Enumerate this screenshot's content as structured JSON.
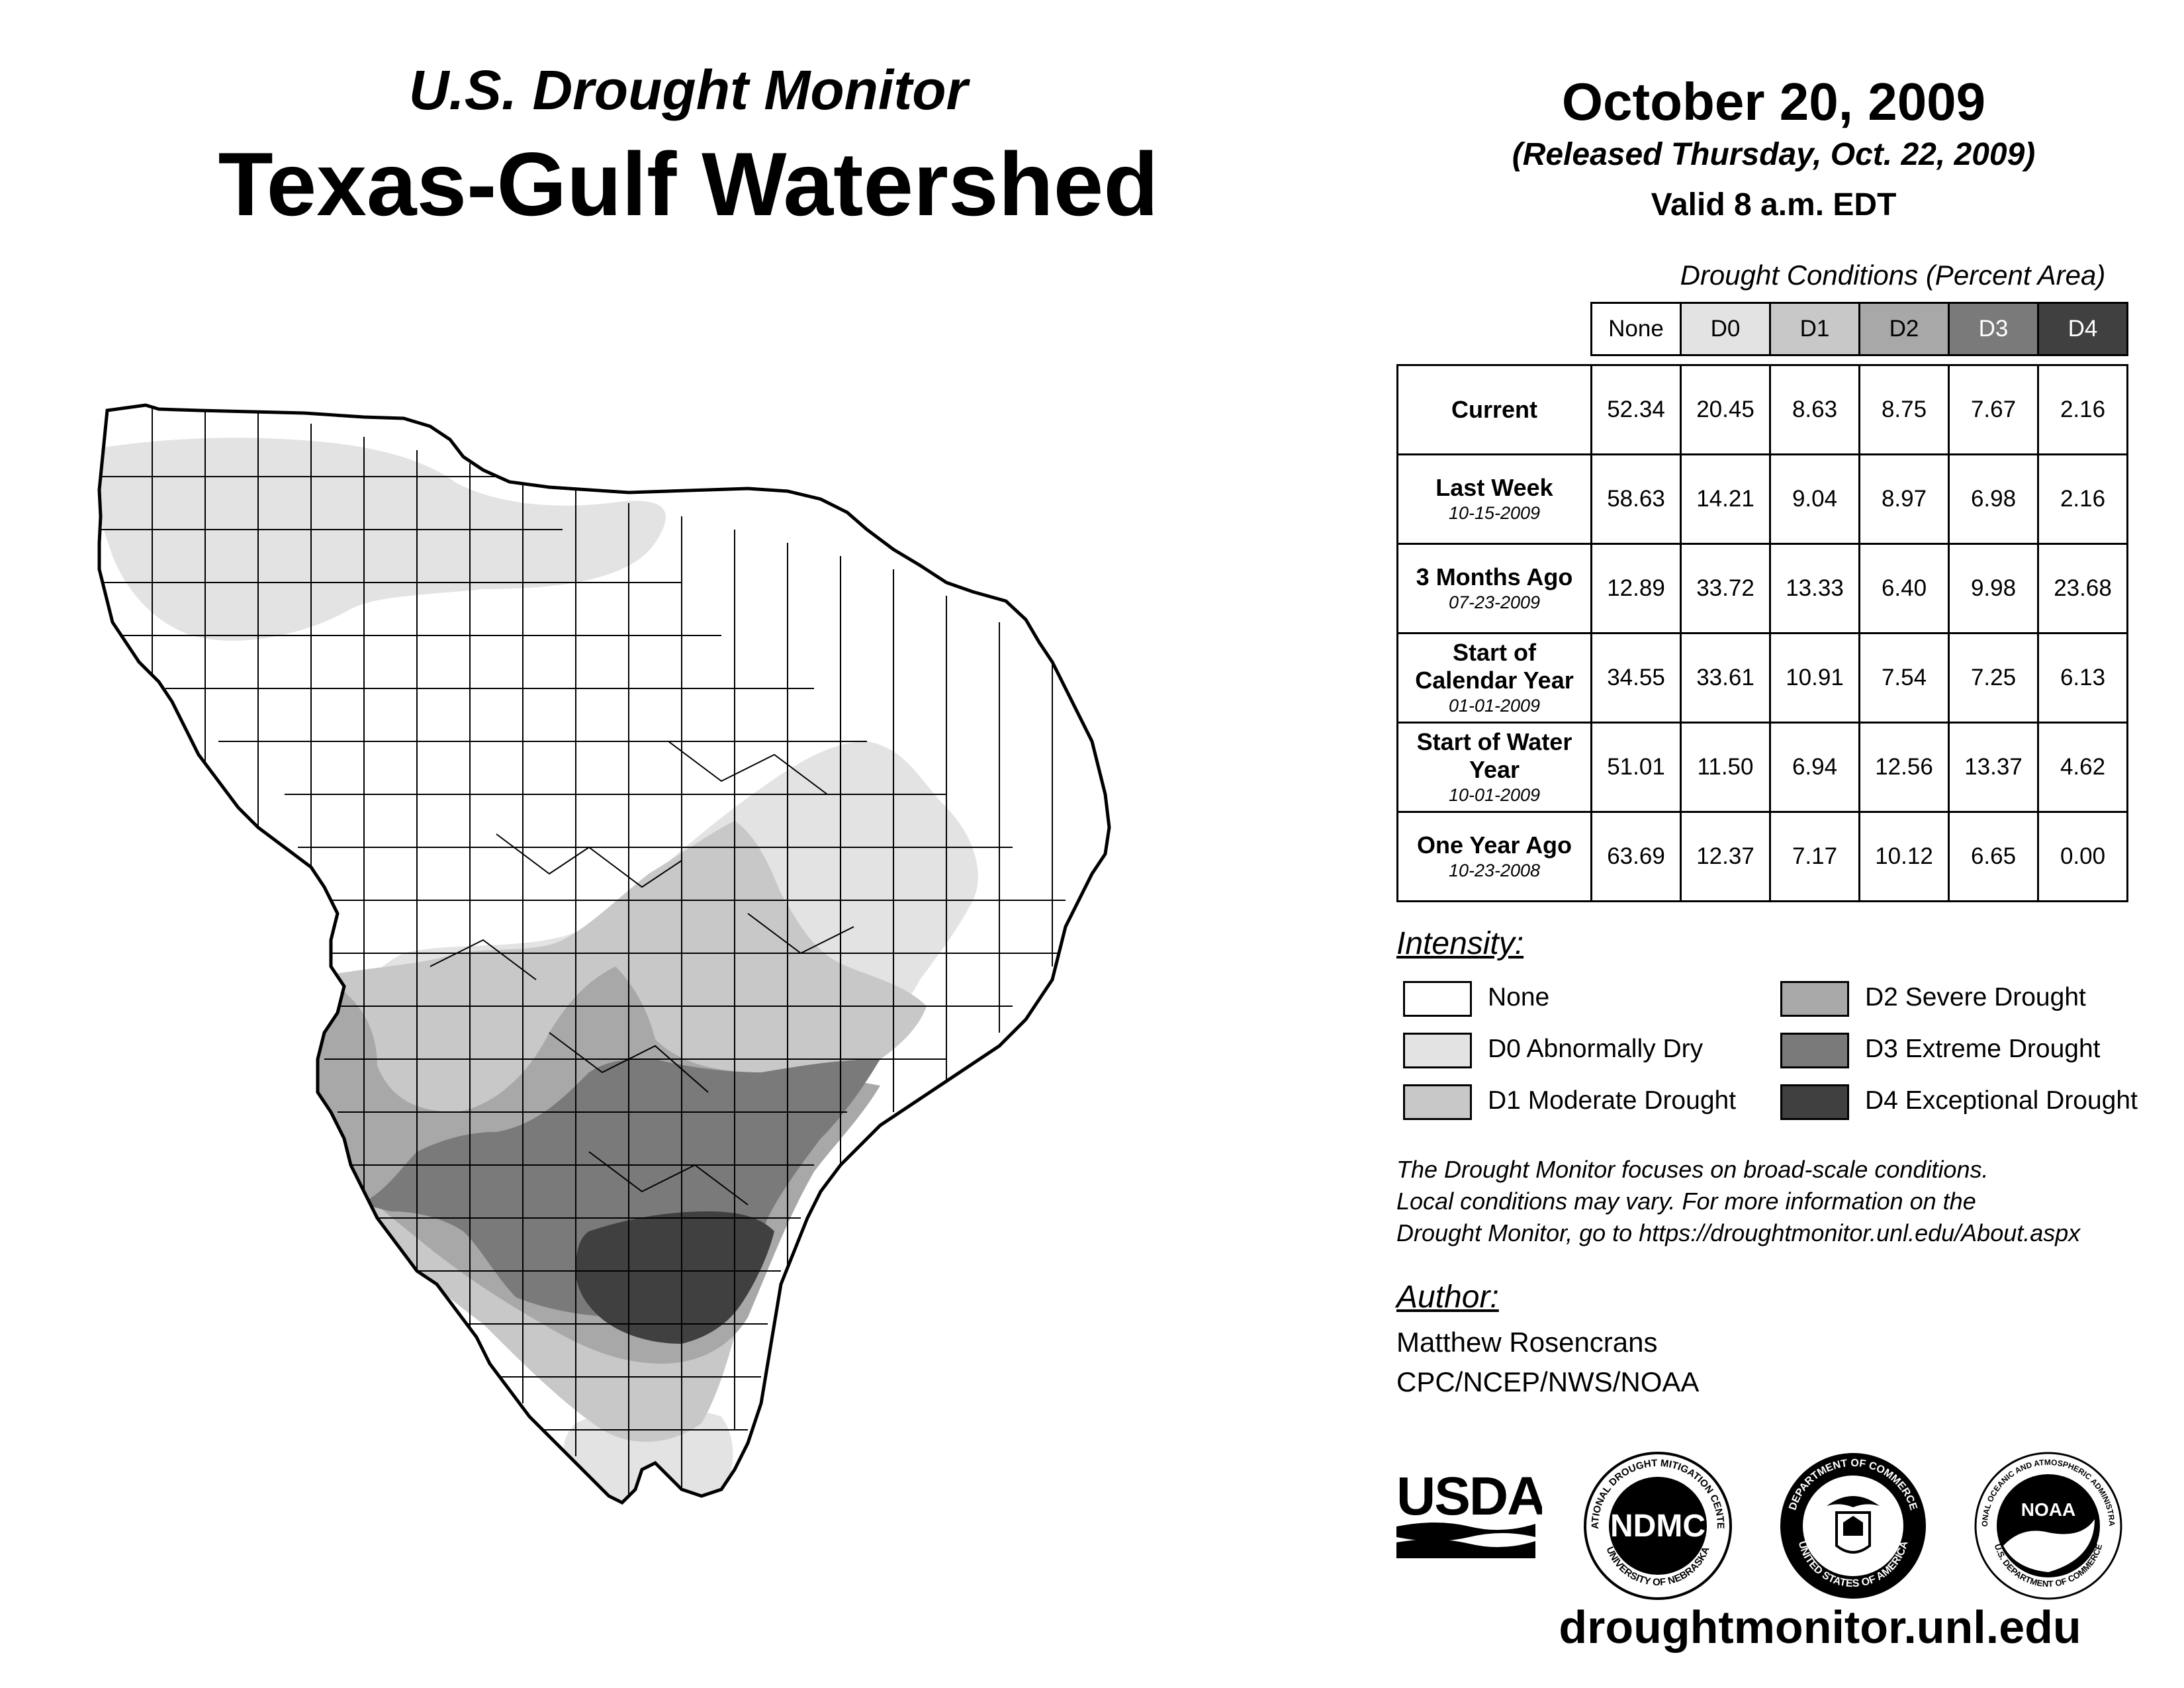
{
  "header": {
    "subtitle": "U.S. Drought Monitor",
    "title": "Texas-Gulf Watershed",
    "date": "October 20, 2009",
    "released": "(Released Thursday, Oct. 22, 2009)",
    "valid": "Valid 8 a.m. EDT"
  },
  "table": {
    "caption": "Drought Conditions (Percent Area)",
    "columns": [
      {
        "label": "None",
        "bg": "#ffffff",
        "fg": "#000000"
      },
      {
        "label": "D0",
        "bg": "#e3e3e3",
        "fg": "#000000"
      },
      {
        "label": "D1",
        "bg": "#c8c8c8",
        "fg": "#000000"
      },
      {
        "label": "D2",
        "bg": "#a8a8a8",
        "fg": "#000000"
      },
      {
        "label": "D3",
        "bg": "#7a7a7a",
        "fg": "#ffffff"
      },
      {
        "label": "D4",
        "bg": "#404040",
        "fg": "#ffffff"
      }
    ],
    "rows": [
      {
        "label": "Current",
        "date": "",
        "values": [
          "52.34",
          "20.45",
          "8.63",
          "8.75",
          "7.67",
          "2.16"
        ]
      },
      {
        "label": "Last Week",
        "date": "10-15-2009",
        "values": [
          "58.63",
          "14.21",
          "9.04",
          "8.97",
          "6.98",
          "2.16"
        ]
      },
      {
        "label": "3 Months Ago",
        "date": "07-23-2009",
        "values": [
          "12.89",
          "33.72",
          "13.33",
          "6.40",
          "9.98",
          "23.68"
        ]
      },
      {
        "label": "Start of Calendar Year",
        "date": "01-01-2009",
        "values": [
          "34.55",
          "33.61",
          "10.91",
          "7.54",
          "7.25",
          "6.13"
        ]
      },
      {
        "label": "Start of Water Year",
        "date": "10-01-2009",
        "values": [
          "51.01",
          "11.50",
          "6.94",
          "12.56",
          "13.37",
          "4.62"
        ]
      },
      {
        "label": "One Year Ago",
        "date": "10-23-2008",
        "values": [
          "63.69",
          "12.37",
          "7.17",
          "10.12",
          "6.65",
          "0.00"
        ]
      }
    ]
  },
  "legend": {
    "title": "Intensity:",
    "items": [
      {
        "label": "None",
        "color": "#ffffff"
      },
      {
        "label": "D0 Abnormally Dry",
        "color": "#e3e3e3"
      },
      {
        "label": "D1 Moderate Drought",
        "color": "#c8c8c8"
      },
      {
        "label": "D2 Severe Drought",
        "color": "#a8a8a8"
      },
      {
        "label": "D3 Extreme Drought",
        "color": "#7a7a7a"
      },
      {
        "label": "D4 Exceptional Drought",
        "color": "#404040"
      }
    ]
  },
  "disclaimer": {
    "line1": "The Drought Monitor focuses on broad-scale conditions.",
    "line2": "Local conditions may vary. For more information on the",
    "line3": "Drought Monitor, go to https://droughtmonitor.unl.edu/About.aspx"
  },
  "author": {
    "title": "Author:",
    "name": "Matthew Rosencrans",
    "org": "CPC/NCEP/NWS/NOAA"
  },
  "logos": {
    "usda": "USDA",
    "ndmc": "NDMC",
    "ndmc_ring_top": "NATIONAL DROUGHT MITIGATION CENTER",
    "ndmc_ring_bottom": "UNIVERSITY OF NEBRASKA",
    "doc_ring_top": "DEPARTMENT OF COMMERCE",
    "doc_ring_bottom": "UNITED STATES OF AMERICA",
    "noaa": "NOAA",
    "noaa_ring_top": "NATIONAL OCEANIC AND ATMOSPHERIC ADMINISTRATION",
    "noaa_ring_bottom": "U.S. DEPARTMENT OF COMMERCE"
  },
  "website": "droughtmonitor.unl.edu"
}
